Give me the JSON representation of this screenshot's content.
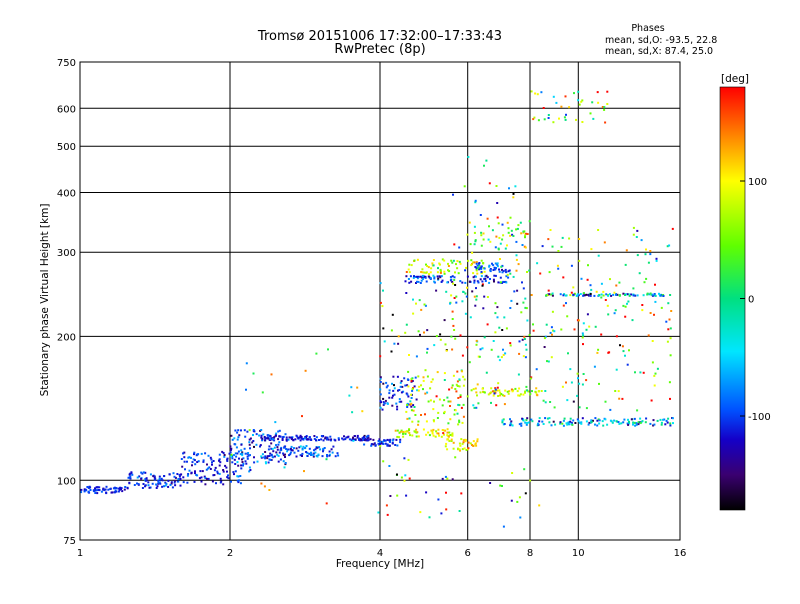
{
  "figure": {
    "title_line1": "Tromsø 20151006 17:32:00–17:33:43",
    "title_line2": "RwPretec (8p)",
    "phases_header": "Phases",
    "phases_line_o": "mean, sd,O: -93.5, 22.8",
    "phases_line_x": "mean, sd,X:  87.4, 25.0",
    "colorbar_label": "[deg]",
    "colorbar_ticks": [
      "100",
      "0",
      "-100"
    ],
    "colorbar_tick_values": [
      100,
      0,
      -100
    ],
    "colorbar_range": [
      -180,
      180
    ]
  },
  "chart_data": {
    "type": "scatter",
    "xlabel": "Frequency [MHz]",
    "ylabel": "Stationary phase Virtual Height [km]",
    "xscale": "log",
    "yscale": "log",
    "xlim": [
      1,
      16
    ],
    "ylim": [
      75,
      750
    ],
    "xticks": [
      1,
      2,
      4,
      6,
      8,
      10,
      16
    ],
    "xtick_labels": [
      "1",
      "2",
      "4",
      "6",
      "8",
      "10",
      "16"
    ],
    "yticks": [
      75,
      100,
      200,
      300,
      400,
      500,
      600,
      750
    ],
    "ytick_labels": [
      "75",
      "100",
      "200",
      "300",
      "400",
      "500",
      "600",
      "750"
    ],
    "grid": true,
    "color_variable": "phase [deg]",
    "colormap_stops": [
      {
        "v": -180,
        "color": "#000000"
      },
      {
        "v": -150,
        "color": "#3a0070"
      },
      {
        "v": -120,
        "color": "#1400c8"
      },
      {
        "v": -95,
        "color": "#0050ff"
      },
      {
        "v": -45,
        "color": "#00e6ff"
      },
      {
        "v": 0,
        "color": "#00e080"
      },
      {
        "v": 45,
        "color": "#60ff00"
      },
      {
        "v": 100,
        "color": "#ffff00"
      },
      {
        "v": 140,
        "color": "#ff8000"
      },
      {
        "v": 180,
        "color": "#ff0000"
      }
    ],
    "clusters": [
      {
        "x": [
          1.0,
          1.25
        ],
        "y": [
          94,
          97
        ],
        "n": 70,
        "phase": -110,
        "sd": 12
      },
      {
        "x": [
          1.25,
          1.6
        ],
        "y": [
          96,
          104
        ],
        "n": 90,
        "phase": -105,
        "sd": 18
      },
      {
        "x": [
          1.6,
          2.2
        ],
        "y": [
          98,
          115
        ],
        "n": 130,
        "phase": -105,
        "sd": 20
      },
      {
        "x": [
          2.0,
          2.6
        ],
        "y": [
          108,
          128
        ],
        "n": 110,
        "phase": -100,
        "sd": 30
      },
      {
        "x": [
          2.4,
          3.3
        ],
        "y": [
          112,
          118
        ],
        "n": 90,
        "phase": -95,
        "sd": 25
      },
      {
        "x": [
          2.3,
          3.8
        ],
        "y": [
          121,
          124
        ],
        "n": 130,
        "phase": -115,
        "sd": 15
      },
      {
        "x": [
          3.7,
          4.4
        ],
        "y": [
          118,
          122
        ],
        "n": 50,
        "phase": -110,
        "sd": 20
      },
      {
        "x": [
          4.3,
          5.6
        ],
        "y": [
          123,
          128
        ],
        "n": 60,
        "phase": 90,
        "sd": 30
      },
      {
        "x": [
          4.0,
          4.8
        ],
        "y": [
          140,
          165
        ],
        "n": 70,
        "phase": -110,
        "sd": 30
      },
      {
        "x": [
          4.5,
          6.0
        ],
        "y": [
          130,
          170
        ],
        "n": 90,
        "phase": 80,
        "sd": 50
      },
      {
        "x": [
          5.4,
          6.3
        ],
        "y": [
          115,
          122
        ],
        "n": 40,
        "phase": 110,
        "sd": 25
      },
      {
        "x": [
          6.0,
          8.5
        ],
        "y": [
          150,
          156
        ],
        "n": 60,
        "phase": 90,
        "sd": 30
      },
      {
        "x": [
          7.0,
          15.5
        ],
        "y": [
          130,
          135
        ],
        "n": 140,
        "phase": -60,
        "sd": 50
      },
      {
        "x": [
          4.5,
          6.5
        ],
        "y": [
          270,
          290
        ],
        "n": 70,
        "phase": 90,
        "sd": 40
      },
      {
        "x": [
          4.5,
          7.3
        ],
        "y": [
          258,
          268
        ],
        "n": 90,
        "phase": -100,
        "sd": 30
      },
      {
        "x": [
          6.2,
          7.3
        ],
        "y": [
          272,
          285
        ],
        "n": 40,
        "phase": -100,
        "sd": 20
      },
      {
        "x": [
          8.5,
          15.5
        ],
        "y": [
          243,
          246
        ],
        "n": 90,
        "phase": -40,
        "sd": 60
      },
      {
        "x": [
          5.5,
          15.5
        ],
        "y": [
          140,
          340
        ],
        "n": 280,
        "phase": 40,
        "sd": 100
      },
      {
        "x": [
          4.0,
          8.0
        ],
        "y": [
          180,
          260
        ],
        "n": 90,
        "phase": -20,
        "sd": 110
      },
      {
        "x": [
          6.0,
          8.0
        ],
        "y": [
          300,
          360
        ],
        "n": 40,
        "phase": 40,
        "sd": 80
      },
      {
        "x": [
          8.0,
          11.5
        ],
        "y": [
          560,
          660
        ],
        "n": 40,
        "phase": 60,
        "sd": 80
      },
      {
        "x": [
          2.0,
          4.2
        ],
        "y": [
          80,
          200
        ],
        "n": 30,
        "phase": 20,
        "sd": 110
      },
      {
        "x": [
          4.0,
          8.5
        ],
        "y": [
          80,
          112
        ],
        "n": 40,
        "phase": 30,
        "sd": 110
      },
      {
        "x": [
          5.5,
          7.5
        ],
        "y": [
          380,
          500
        ],
        "n": 14,
        "phase": -30,
        "sd": 120
      }
    ]
  }
}
